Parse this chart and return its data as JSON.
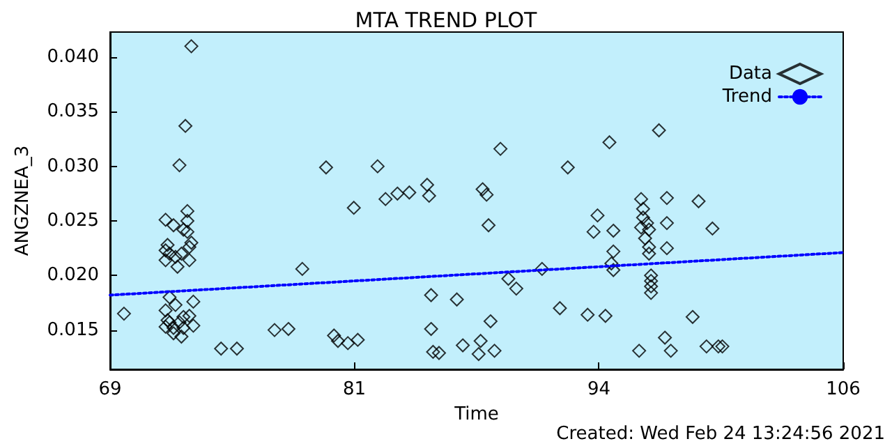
{
  "chart_data": {
    "type": "scatter",
    "title": "MTA TREND PLOT",
    "xlabel": "Time",
    "ylabel": "ANGZNEA_3",
    "annotations": [
      "Created: Wed Feb 24 13:24:56 2021"
    ],
    "xlim": [
      69,
      106
    ],
    "xticks": [
      69,
      {
        "value": 81.33,
        "label": "81"
      },
      {
        "value": 93.67,
        "label": "94"
      },
      106
    ],
    "ylim": [
      0.0114,
      0.0423
    ],
    "yticks": [
      {
        "value": 0.015,
        "label": "0.015"
      },
      {
        "value": 0.02,
        "label": "0.020"
      },
      {
        "value": 0.025,
        "label": "0.025"
      },
      {
        "value": 0.03,
        "label": "0.030"
      },
      {
        "value": 0.035,
        "label": "0.035"
      },
      {
        "value": 0.04,
        "label": "0.040"
      }
    ],
    "grid": false,
    "legend": "top right",
    "series": [
      {
        "name": "Data",
        "marker": "diamond",
        "color": "#000000",
        "x": [
          69.7,
          71.8,
          72.2,
          72.5,
          72.8,
          73.1,
          72.9,
          72.9,
          72.7,
          72.9,
          73.1,
          73.0,
          71.9,
          71.8,
          72.0,
          72.3,
          72.6,
          72.4,
          73.0,
          71.8,
          72.0,
          72.3,
          73.2,
          71.8,
          71.9,
          72.0,
          72.2,
          72.5,
          72.7,
          73.0,
          73.2,
          72.6,
          71.8,
          72.2,
          72.7,
          74.6,
          75.4,
          77.3,
          78.0,
          78.7,
          79.9,
          80.3,
          80.5,
          81.0,
          81.5,
          81.3,
          82.5,
          82.9,
          83.5,
          84.1,
          85.0,
          85.1,
          85.2,
          85.2,
          85.3,
          85.6,
          86.5,
          86.8,
          87.7,
          87.6,
          87.8,
          88.0,
          88.1,
          88.2,
          88.4,
          88.7,
          89.1,
          89.5,
          90.8,
          91.7,
          92.1,
          93.1,
          93.4,
          93.6,
          94.0,
          94.2,
          94.4,
          94.4,
          94.3,
          94.4,
          95.7,
          95.8,
          95.9,
          95.8,
          95.9,
          96.1,
          96.2,
          96.0,
          96.2,
          96.2,
          96.3,
          96.3,
          96.3,
          96.3,
          96.7,
          97.0,
          97.1,
          97.1,
          97.1,
          97.3,
          98.4,
          98.7,
          99.1,
          99.4,
          99.7,
          99.9
        ],
        "values": [
          0.0165,
          0.0251,
          0.0246,
          0.0301,
          0.0337,
          0.041,
          0.0259,
          0.025,
          0.0242,
          0.024,
          0.023,
          0.0226,
          0.0228,
          0.0223,
          0.022,
          0.0217,
          0.022,
          0.0208,
          0.0214,
          0.0214,
          0.018,
          0.0173,
          0.0176,
          0.0168,
          0.0159,
          0.0157,
          0.0152,
          0.0157,
          0.0162,
          0.0163,
          0.0154,
          0.0144,
          0.0153,
          0.0147,
          0.0152,
          0.0133,
          0.0133,
          0.015,
          0.0151,
          0.0206,
          0.0299,
          0.0145,
          0.014,
          0.0138,
          0.0141,
          0.0262,
          0.03,
          0.027,
          0.0275,
          0.0276,
          0.0283,
          0.0273,
          0.0182,
          0.0151,
          0.013,
          0.0129,
          0.0178,
          0.0136,
          0.014,
          0.0128,
          0.0279,
          0.0274,
          0.0246,
          0.0158,
          0.0131,
          0.0316,
          0.0197,
          0.0188,
          0.0206,
          0.017,
          0.0299,
          0.0164,
          0.024,
          0.0255,
          0.0163,
          0.0322,
          0.0241,
          0.0222,
          0.0211,
          0.0205,
          0.0131,
          0.027,
          0.0261,
          0.0244,
          0.0253,
          0.0248,
          0.0242,
          0.0234,
          0.0226,
          0.022,
          0.02,
          0.0195,
          0.019,
          0.0184,
          0.0333,
          0.0143,
          0.0271,
          0.0248,
          0.0225,
          0.0131,
          0.0162,
          0.0268,
          0.0135,
          0.0243,
          0.0135,
          0.0135
        ]
      },
      {
        "name": "Trend",
        "type": "line",
        "marker": "none",
        "line_style": "dotted",
        "color": "#0000ff",
        "x": [
          69,
          106
        ],
        "values": [
          0.0182,
          0.0221
        ]
      }
    ]
  }
}
